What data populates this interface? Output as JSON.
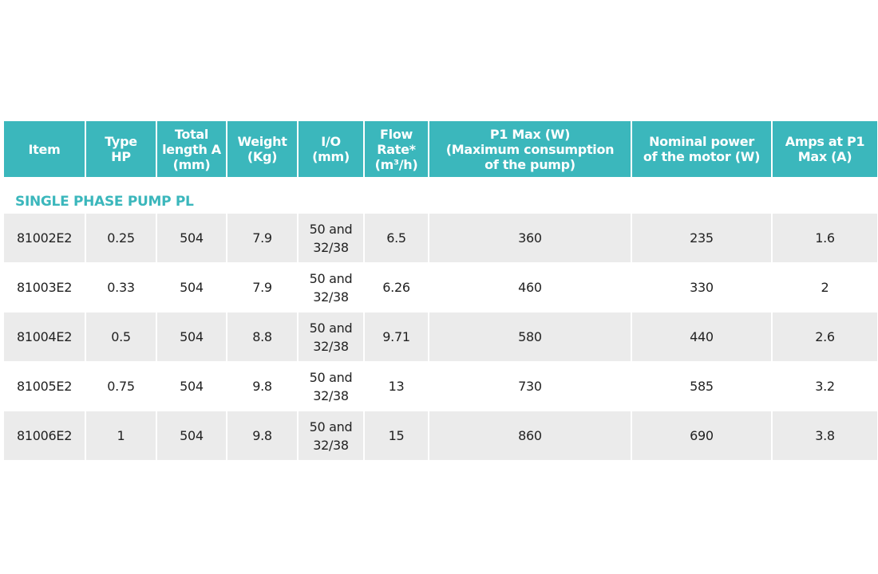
{
  "table": {
    "header": [
      [
        "Item"
      ],
      [
        "Type",
        "HP"
      ],
      [
        "Total",
        "length A",
        "(mm)"
      ],
      [
        "Weight",
        "(Kg)"
      ],
      [
        "I/O",
        "(mm)"
      ],
      [
        "Flow",
        "Rate*",
        "(m³/h)"
      ],
      [
        "P1 Max (W)",
        "(Maximum consumption",
        "of the pump)"
      ],
      [
        "Nominal power",
        "of the motor (W)"
      ],
      [
        "Amps at P1",
        "Max (A)"
      ]
    ],
    "section": "SINGLE PHASE PUMP PL",
    "rows": [
      [
        "81002E2",
        0.25,
        504,
        7.9,
        "50 and 32/38",
        6.5,
        360,
        235,
        1.6
      ],
      [
        "81003E2",
        0.33,
        504,
        7.9,
        "50 and 32/38",
        6.26,
        460,
        330,
        2
      ],
      [
        "81004E2",
        0.5,
        504,
        8.8,
        "50 and 32/38",
        9.71,
        580,
        440,
        2.6
      ],
      [
        "81005E2",
        0.75,
        504,
        9.8,
        "50 and 32/38",
        13,
        730,
        585,
        3.2
      ],
      [
        "81006E2",
        1,
        504,
        9.8,
        "50 and 32/38",
        15,
        860,
        690,
        3.8
      ]
    ]
  }
}
